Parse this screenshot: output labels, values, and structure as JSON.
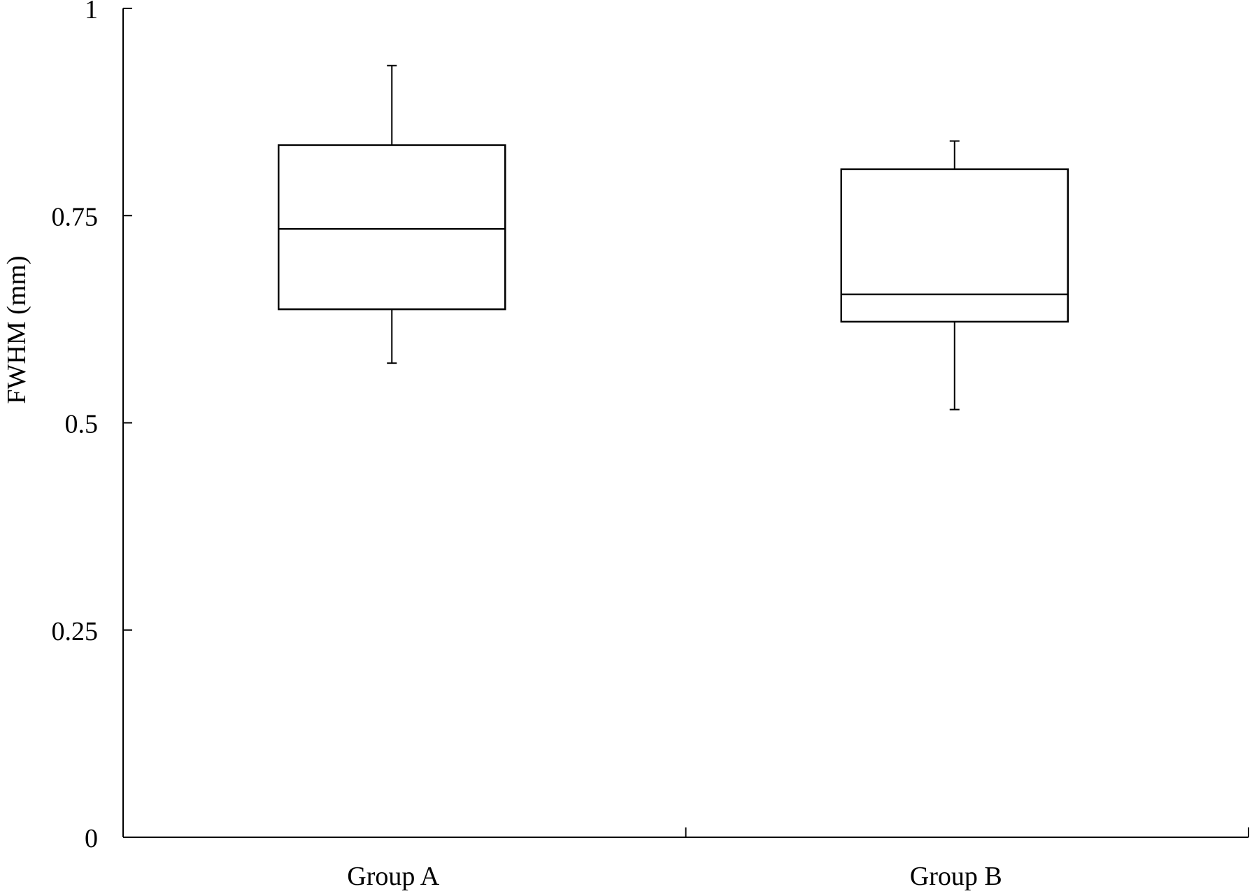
{
  "chart_data": {
    "type": "box",
    "title": "",
    "xlabel": "",
    "ylabel": "FWHM (mm)",
    "ylim": [
      0,
      1
    ],
    "yticks": [
      0,
      0.25,
      0.5,
      0.75,
      1
    ],
    "ytick_labels": [
      "0",
      "0.25",
      "0.5",
      "0.75",
      "1"
    ],
    "categories": [
      "Group A",
      "Group B"
    ],
    "grid": false,
    "legend": "none",
    "boxes": [
      {
        "category": "Group A",
        "min": 0.572,
        "q1": 0.637,
        "median": 0.734,
        "q3": 0.835,
        "max": 0.931
      },
      {
        "category": "Group B",
        "min": 0.516,
        "q1": 0.622,
        "median": 0.655,
        "q3": 0.806,
        "max": 0.84
      }
    ],
    "colors": {
      "stroke": "#000000",
      "background": "#ffffff"
    }
  }
}
